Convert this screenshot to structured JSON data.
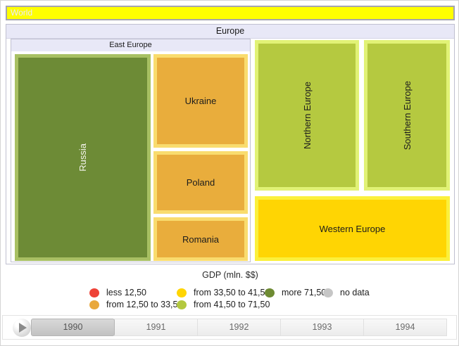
{
  "breadcrumb": {
    "world_label": "World",
    "bar_color": "#ffff00"
  },
  "treemap": {
    "europe_label": "Europe",
    "east_europe_label": "East Europe",
    "cells": {
      "russia": {
        "label": "Russia",
        "fill": "#6d8b36",
        "frame": "#a8c063",
        "gdp_class": "more 71,50"
      },
      "ukraine": {
        "label": "Ukraine",
        "fill": "#e9ad3c",
        "frame": "#f9dc6e",
        "gdp_class": "from 12,50 to 33,50"
      },
      "poland": {
        "label": "Poland",
        "fill": "#e9ad3c",
        "frame": "#f9dc6e",
        "gdp_class": "from 12,50 to 33,50"
      },
      "romania": {
        "label": "Romania",
        "fill": "#e9ad3c",
        "frame": "#f9dc6e",
        "gdp_class": "from 12,50 to 33,50"
      },
      "northern": {
        "label": "Northern Europe",
        "fill": "#b5c940",
        "frame": "#e1f276",
        "gdp_class": "from 41,50 to 71,50"
      },
      "southern": {
        "label": "Southern Europe",
        "fill": "#b5c940",
        "frame": "#e1f276",
        "gdp_class": "from 41,50 to 71,50"
      },
      "western": {
        "label": "Western Europe",
        "fill": "#ffd503",
        "frame": "#fbf03c",
        "gdp_class": "from 33,50 to 41,50"
      }
    }
  },
  "legend": {
    "title": "GDP (mln. $$)",
    "items": [
      {
        "label": "less 12,50",
        "color": "#ee4237"
      },
      {
        "label": "from 12,50 to 33,50",
        "color": "#e9a83c"
      },
      {
        "label": "from 33,50 to 41,50",
        "color": "#ffd503"
      },
      {
        "label": "from 41,50 to 71,50",
        "color": "#b3c83f"
      },
      {
        "label": "more 71,50",
        "color": "#6e8b33"
      },
      {
        "label": "no data",
        "color": "#c6c6c6"
      }
    ]
  },
  "timeline": {
    "years": [
      "1990",
      "1991",
      "1992",
      "1993",
      "1994"
    ],
    "selected": "1990"
  },
  "chart_data": {
    "type": "treemap",
    "title": "GDP (mln. $$)",
    "root": "World",
    "current_level": "Europe",
    "selected_year": "1990",
    "legend_position": "bottom",
    "color_classes": [
      "less 12,50",
      "from 12,50 to 33,50",
      "from 33,50 to 41,50",
      "from 41,50 to 71,50",
      "more 71,50",
      "no data"
    ],
    "nodes": [
      {
        "name": "Europe",
        "parent": "World"
      },
      {
        "name": "East Europe",
        "parent": "Europe"
      },
      {
        "name": "Russia",
        "parent": "East Europe",
        "gdp_class": "more 71,50"
      },
      {
        "name": "Ukraine",
        "parent": "East Europe",
        "gdp_class": "from 12,50 to 33,50"
      },
      {
        "name": "Poland",
        "parent": "East Europe",
        "gdp_class": "from 12,50 to 33,50"
      },
      {
        "name": "Romania",
        "parent": "East Europe",
        "gdp_class": "from 12,50 to 33,50"
      },
      {
        "name": "Northern Europe",
        "parent": "Europe",
        "gdp_class": "from 41,50 to 71,50"
      },
      {
        "name": "Southern Europe",
        "parent": "Europe",
        "gdp_class": "from 41,50 to 71,50"
      },
      {
        "name": "Western Europe",
        "parent": "Europe",
        "gdp_class": "from 33,50 to 41,50"
      }
    ]
  }
}
